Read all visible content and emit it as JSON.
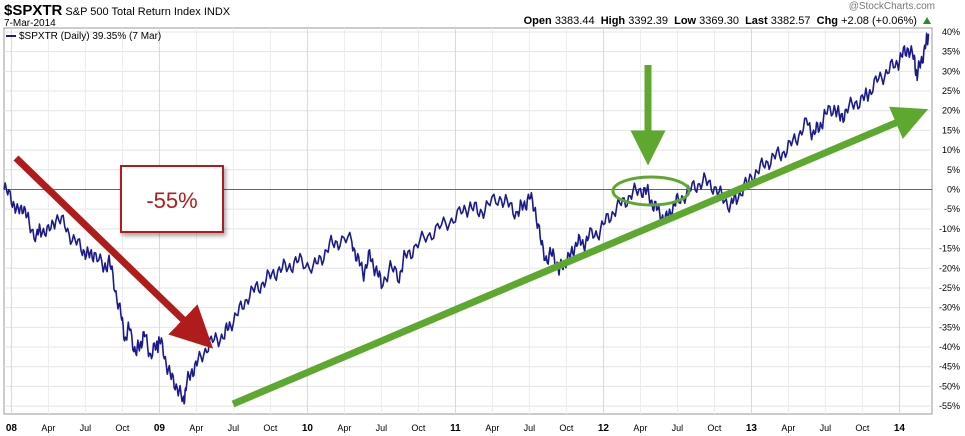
{
  "header": {
    "ticker": "$SPXTR",
    "name": "S&P 500 Total Return Index",
    "exchange": "INDX",
    "date": "7-Mar-2014",
    "credit": "@StockCharts.com",
    "open_label": "Open",
    "open": "3383.44",
    "high_label": "High",
    "high": "3392.39",
    "low_label": "Low",
    "low": "3369.30",
    "last_label": "Last",
    "last": "3382.57",
    "chg_label": "Chg",
    "chg": "+2.08 (+0.06%)"
  },
  "chart_data": {
    "type": "line",
    "legend": "$SPXTR (Daily) 39.35% (7 Mar)",
    "y_ticks": [
      "40%",
      "35%",
      "30%",
      "25%",
      "20%",
      "15%",
      "10%",
      "5%",
      "0%",
      "-5%",
      "-10%",
      "-15%",
      "-20%",
      "-25%",
      "-30%",
      "-35%",
      "-40%",
      "-45%",
      "-50%",
      "-55%"
    ],
    "y_values": [
      40,
      35,
      30,
      25,
      20,
      15,
      10,
      5,
      0,
      -5,
      -10,
      -15,
      -20,
      -25,
      -30,
      -35,
      -40,
      -45,
      -50,
      -55
    ],
    "ylim": [
      -57,
      41
    ],
    "x_ticks": [
      {
        "label": "08",
        "bold": true,
        "t": 2008.0
      },
      {
        "label": "Apr",
        "t": 2008.25
      },
      {
        "label": "Jul",
        "t": 2008.5
      },
      {
        "label": "Oct",
        "t": 2008.75
      },
      {
        "label": "09",
        "bold": true,
        "t": 2009.0
      },
      {
        "label": "Apr",
        "t": 2009.25
      },
      {
        "label": "Jul",
        "t": 2009.5
      },
      {
        "label": "Oct",
        "t": 2009.75
      },
      {
        "label": "10",
        "bold": true,
        "t": 2010.0
      },
      {
        "label": "Apr",
        "t": 2010.25
      },
      {
        "label": "Jul",
        "t": 2010.5
      },
      {
        "label": "Oct",
        "t": 2010.75
      },
      {
        "label": "11",
        "bold": true,
        "t": 2011.0
      },
      {
        "label": "Apr",
        "t": 2011.25
      },
      {
        "label": "Jul",
        "t": 2011.5
      },
      {
        "label": "Oct",
        "t": 2011.75
      },
      {
        "label": "12",
        "bold": true,
        "t": 2012.0
      },
      {
        "label": "Apr",
        "t": 2012.25
      },
      {
        "label": "Jul",
        "t": 2012.5
      },
      {
        "label": "Oct",
        "t": 2012.75
      },
      {
        "label": "13",
        "bold": true,
        "t": 2013.0
      },
      {
        "label": "Apr",
        "t": 2013.25
      },
      {
        "label": "Jul",
        "t": 2013.5
      },
      {
        "label": "Oct",
        "t": 2013.75
      },
      {
        "label": "14",
        "bold": true,
        "t": 2014.0
      }
    ],
    "xlim": [
      2007.95,
      2014.22
    ],
    "series": [
      {
        "color": "#1a1a8c",
        "points": [
          [
            2007.95,
            0
          ],
          [
            2008.0,
            -2
          ],
          [
            2008.04,
            -6
          ],
          [
            2008.08,
            -4
          ],
          [
            2008.12,
            -9
          ],
          [
            2008.17,
            -12
          ],
          [
            2008.2,
            -10
          ],
          [
            2008.25,
            -11
          ],
          [
            2008.3,
            -7
          ],
          [
            2008.36,
            -9
          ],
          [
            2008.42,
            -13
          ],
          [
            2008.48,
            -15
          ],
          [
            2008.52,
            -17
          ],
          [
            2008.56,
            -16
          ],
          [
            2008.62,
            -20
          ],
          [
            2008.66,
            -18
          ],
          [
            2008.7,
            -25
          ],
          [
            2008.74,
            -32
          ],
          [
            2008.77,
            -38
          ],
          [
            2008.8,
            -35
          ],
          [
            2008.84,
            -42
          ],
          [
            2008.87,
            -39
          ],
          [
            2008.9,
            -37
          ],
          [
            2008.94,
            -42
          ],
          [
            2008.98,
            -40
          ],
          [
            2009.0,
            -38
          ],
          [
            2009.04,
            -43
          ],
          [
            2009.08,
            -48
          ],
          [
            2009.12,
            -50
          ],
          [
            2009.16,
            -54
          ],
          [
            2009.18,
            -50
          ],
          [
            2009.22,
            -46
          ],
          [
            2009.26,
            -44
          ],
          [
            2009.32,
            -40
          ],
          [
            2009.38,
            -38
          ],
          [
            2009.44,
            -37
          ],
          [
            2009.48,
            -34
          ],
          [
            2009.54,
            -31
          ],
          [
            2009.6,
            -27
          ],
          [
            2009.66,
            -25
          ],
          [
            2009.72,
            -23
          ],
          [
            2009.78,
            -21
          ],
          [
            2009.84,
            -20
          ],
          [
            2009.9,
            -19
          ],
          [
            2009.96,
            -18
          ],
          [
            2010.04,
            -20
          ],
          [
            2010.1,
            -17
          ],
          [
            2010.16,
            -14
          ],
          [
            2010.22,
            -13
          ],
          [
            2010.3,
            -13
          ],
          [
            2010.34,
            -18
          ],
          [
            2010.38,
            -21
          ],
          [
            2010.42,
            -17
          ],
          [
            2010.46,
            -20
          ],
          [
            2010.5,
            -24
          ],
          [
            2010.56,
            -20
          ],
          [
            2010.62,
            -22
          ],
          [
            2010.66,
            -17
          ],
          [
            2010.72,
            -15
          ],
          [
            2010.8,
            -12
          ],
          [
            2010.88,
            -10
          ],
          [
            2010.96,
            -8
          ],
          [
            2011.04,
            -6
          ],
          [
            2011.1,
            -4
          ],
          [
            2011.16,
            -6
          ],
          [
            2011.22,
            -4
          ],
          [
            2011.3,
            -2
          ],
          [
            2011.36,
            -4
          ],
          [
            2011.42,
            -6
          ],
          [
            2011.46,
            -4
          ],
          [
            2011.5,
            -2
          ],
          [
            2011.54,
            -5
          ],
          [
            2011.58,
            -14
          ],
          [
            2011.62,
            -18
          ],
          [
            2011.66,
            -16
          ],
          [
            2011.7,
            -21
          ],
          [
            2011.74,
            -18
          ],
          [
            2011.78,
            -17
          ],
          [
            2011.82,
            -13
          ],
          [
            2011.86,
            -14
          ],
          [
            2011.9,
            -12
          ],
          [
            2011.96,
            -11
          ],
          [
            2012.02,
            -8
          ],
          [
            2012.08,
            -5
          ],
          [
            2012.14,
            -3
          ],
          [
            2012.2,
            -1
          ],
          [
            2012.26,
            0
          ],
          [
            2012.3,
            -1
          ],
          [
            2012.34,
            -4
          ],
          [
            2012.38,
            -6
          ],
          [
            2012.42,
            -8
          ],
          [
            2012.46,
            -5
          ],
          [
            2012.5,
            -3
          ],
          [
            2012.56,
            -1
          ],
          [
            2012.62,
            1
          ],
          [
            2012.68,
            2
          ],
          [
            2012.74,
            1
          ],
          [
            2012.8,
            -2
          ],
          [
            2012.86,
            -4
          ],
          [
            2012.9,
            -2
          ],
          [
            2012.96,
            1
          ],
          [
            2013.02,
            4
          ],
          [
            2013.08,
            6
          ],
          [
            2013.14,
            8
          ],
          [
            2013.2,
            9
          ],
          [
            2013.26,
            11
          ],
          [
            2013.32,
            14
          ],
          [
            2013.38,
            17
          ],
          [
            2013.42,
            14
          ],
          [
            2013.46,
            16
          ],
          [
            2013.5,
            19
          ],
          [
            2013.56,
            21
          ],
          [
            2013.6,
            18
          ],
          [
            2013.64,
            20
          ],
          [
            2013.7,
            22
          ],
          [
            2013.76,
            23
          ],
          [
            2013.8,
            25
          ],
          [
            2013.86,
            28
          ],
          [
            2013.92,
            30
          ],
          [
            2013.98,
            32
          ],
          [
            2014.02,
            34
          ],
          [
            2014.06,
            36
          ],
          [
            2014.1,
            33
          ],
          [
            2014.12,
            29
          ],
          [
            2014.15,
            33
          ],
          [
            2014.18,
            37
          ],
          [
            2014.2,
            39.35
          ]
        ]
      }
    ],
    "annotations": {
      "drop_label": "-55%"
    }
  }
}
